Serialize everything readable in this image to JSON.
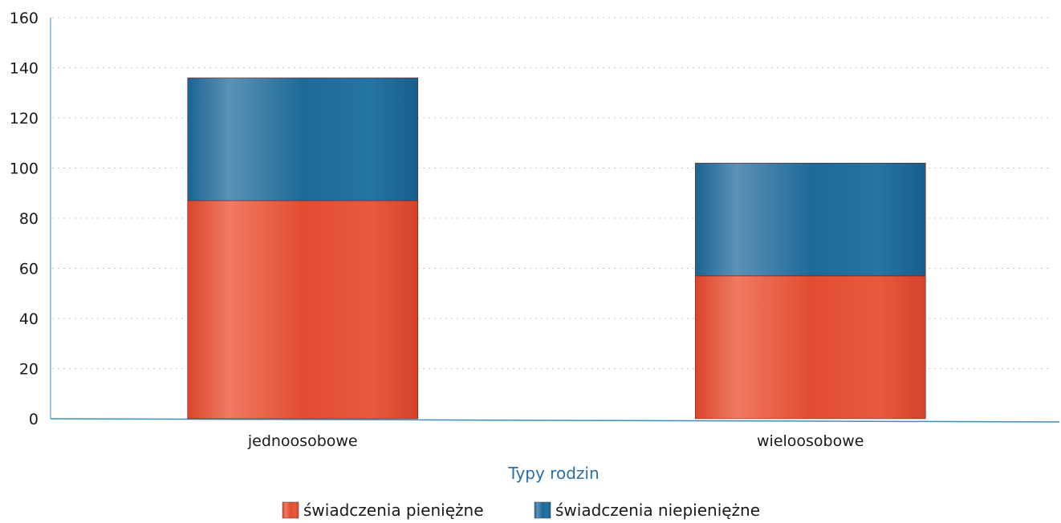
{
  "colors": {
    "series_1": "#e8573a",
    "series_2": "#1f6e9c",
    "axis": "#3a8fc0",
    "grid": "#c9c9c9",
    "xlabel": "#2a6fa8"
  },
  "chart_data": {
    "type": "bar",
    "stacked": true,
    "categories": [
      "jednoosobowe",
      "wieloosobowe"
    ],
    "series": [
      {
        "name": "świadczenia pieniężne",
        "values": [
          87,
          57
        ]
      },
      {
        "name": "świadczenia niepieniężne",
        "values": [
          49,
          45
        ]
      }
    ],
    "xlabel": "Typy rodzin",
    "ylabel": "",
    "ylim": [
      0,
      160
    ],
    "yticks": [
      0,
      20,
      40,
      60,
      80,
      100,
      120,
      140,
      160
    ],
    "grid": true,
    "legend_position": "bottom"
  }
}
